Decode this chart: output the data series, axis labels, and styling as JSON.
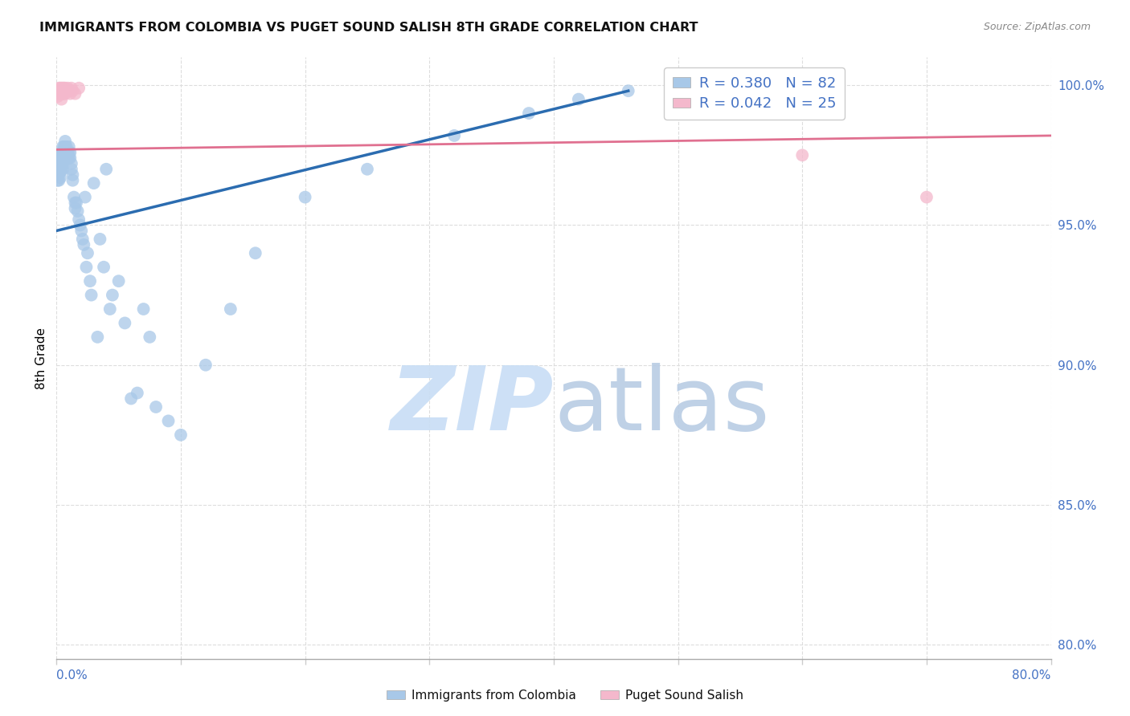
{
  "title": "IMMIGRANTS FROM COLOMBIA VS PUGET SOUND SALISH 8TH GRADE CORRELATION CHART",
  "source": "Source: ZipAtlas.com",
  "ylabel": "8th Grade",
  "ytick_labels": [
    "100.0%",
    "95.0%",
    "90.0%",
    "85.0%",
    "80.0%"
  ],
  "ytick_values": [
    1.0,
    0.95,
    0.9,
    0.85,
    0.8
  ],
  "xlim": [
    0.0,
    0.8
  ],
  "ylim": [
    0.795,
    1.01
  ],
  "blue_color": "#a8c8e8",
  "pink_color": "#f4b8cc",
  "blue_line_color": "#2b6cb0",
  "pink_line_color": "#e07090",
  "watermark": "ZIPatlas",
  "watermark_zip_color": "#c8dff0",
  "watermark_atlas_color": "#b0c8e0",
  "blue_scatter_x": [
    0.001,
    0.001,
    0.001,
    0.002,
    0.002,
    0.002,
    0.002,
    0.003,
    0.003,
    0.003,
    0.003,
    0.003,
    0.004,
    0.004,
    0.004,
    0.004,
    0.005,
    0.005,
    0.005,
    0.005,
    0.005,
    0.006,
    0.006,
    0.006,
    0.007,
    0.007,
    0.007,
    0.007,
    0.008,
    0.008,
    0.008,
    0.009,
    0.009,
    0.01,
    0.01,
    0.01,
    0.011,
    0.011,
    0.012,
    0.012,
    0.013,
    0.013,
    0.014,
    0.015,
    0.015,
    0.016,
    0.017,
    0.018,
    0.019,
    0.02,
    0.021,
    0.022,
    0.023,
    0.024,
    0.025,
    0.027,
    0.028,
    0.03,
    0.033,
    0.035,
    0.038,
    0.04,
    0.043,
    0.045,
    0.05,
    0.055,
    0.06,
    0.065,
    0.07,
    0.075,
    0.08,
    0.09,
    0.1,
    0.12,
    0.14,
    0.16,
    0.2,
    0.25,
    0.32,
    0.38,
    0.42,
    0.46
  ],
  "blue_scatter_y": [
    0.97,
    0.968,
    0.966,
    0.972,
    0.97,
    0.968,
    0.966,
    0.975,
    0.973,
    0.971,
    0.969,
    0.967,
    0.976,
    0.974,
    0.972,
    0.97,
    0.978,
    0.976,
    0.974,
    0.972,
    0.97,
    0.978,
    0.976,
    0.974,
    0.98,
    0.978,
    0.976,
    0.974,
    0.978,
    0.976,
    0.974,
    0.976,
    0.974,
    0.978,
    0.976,
    0.974,
    0.976,
    0.974,
    0.972,
    0.97,
    0.968,
    0.966,
    0.96,
    0.958,
    0.956,
    0.958,
    0.955,
    0.952,
    0.95,
    0.948,
    0.945,
    0.943,
    0.96,
    0.935,
    0.94,
    0.93,
    0.925,
    0.965,
    0.91,
    0.945,
    0.935,
    0.97,
    0.92,
    0.925,
    0.93,
    0.915,
    0.888,
    0.89,
    0.92,
    0.91,
    0.885,
    0.88,
    0.875,
    0.9,
    0.92,
    0.94,
    0.96,
    0.97,
    0.982,
    0.99,
    0.995,
    0.998
  ],
  "pink_scatter_x": [
    0.001,
    0.001,
    0.002,
    0.002,
    0.003,
    0.003,
    0.004,
    0.004,
    0.004,
    0.005,
    0.005,
    0.006,
    0.006,
    0.007,
    0.007,
    0.008,
    0.009,
    0.01,
    0.011,
    0.012,
    0.013,
    0.015,
    0.018,
    0.6,
    0.7
  ],
  "pink_scatter_y": [
    0.998,
    0.996,
    0.999,
    0.997,
    0.999,
    0.997,
    0.999,
    0.997,
    0.995,
    0.999,
    0.997,
    0.999,
    0.997,
    0.999,
    0.997,
    0.998,
    0.999,
    0.998,
    0.997,
    0.999,
    0.998,
    0.997,
    0.999,
    0.975,
    0.96
  ],
  "blue_trend_x": [
    0.0,
    0.46
  ],
  "blue_trend_y": [
    0.948,
    0.998
  ],
  "pink_trend_x": [
    0.0,
    0.8
  ],
  "pink_trend_y": [
    0.977,
    0.982
  ]
}
